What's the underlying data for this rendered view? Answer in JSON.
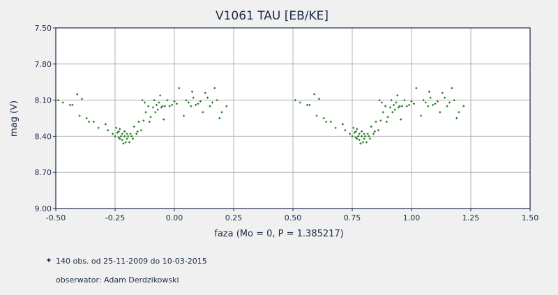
{
  "chart_data": {
    "type": "scatter",
    "title": "V1061 TAU [EB/KE]",
    "xlabel": "faza (Mo = 0, P = 1.385217)",
    "ylabel": "mag (V)",
    "xlim": [
      -0.5,
      1.5
    ],
    "ylim": [
      7.5,
      9.0
    ],
    "y_inverted": true,
    "grid": true,
    "x_ticks": [
      "-0.50",
      "-0.25",
      "0.00",
      "0.25",
      "0.50",
      "0.75",
      "1.00",
      "1.25",
      "1.50"
    ],
    "y_ticks": [
      "7.50",
      "7.80",
      "8.10",
      "8.40",
      "8.70",
      "9.00"
    ],
    "legend": {
      "marker_color": "#1a7a1a",
      "observations": "140 obs. od 25-11-2009 do 10-03-2015",
      "observer": "obserwator: Adam Derdzikowski"
    },
    "colors": {
      "points": "#1a7a1a",
      "grid": "#b0b0b0",
      "plot_bg": "#ffffff",
      "axis": "#1a2a4a"
    },
    "series": [
      {
        "x": [
          -0.49,
          -0.47,
          -0.44,
          -0.43,
          -0.41,
          -0.4,
          -0.39,
          -0.37,
          -0.36,
          -0.34,
          -0.32,
          -0.29,
          -0.28,
          -0.26,
          -0.25,
          -0.245,
          -0.24,
          -0.235,
          -0.235,
          -0.23,
          -0.23,
          -0.225,
          -0.22,
          -0.22,
          -0.215,
          -0.21,
          -0.21,
          -0.205,
          -0.2,
          -0.2,
          -0.195,
          -0.19,
          -0.185,
          -0.18,
          -0.175,
          -0.17,
          -0.16,
          -0.155,
          -0.15,
          -0.14,
          -0.135,
          -0.13,
          -0.125,
          -0.12,
          -0.11,
          -0.105,
          -0.1,
          -0.09,
          -0.085,
          -0.08,
          -0.075,
          -0.07,
          -0.065,
          -0.06,
          -0.055,
          -0.05,
          -0.045,
          -0.04,
          -0.03,
          -0.02,
          -0.01,
          0.0,
          0.01,
          0.02,
          0.04,
          0.05,
          0.06,
          0.07,
          0.075,
          0.08,
          0.09,
          0.1,
          0.11,
          0.12,
          0.13,
          0.14,
          0.15,
          0.16,
          0.17,
          0.18,
          0.19,
          0.2,
          0.22
        ],
        "y": [
          8.1,
          8.12,
          8.14,
          8.14,
          8.05,
          8.23,
          8.09,
          8.25,
          8.28,
          8.28,
          8.33,
          8.3,
          8.35,
          8.38,
          8.4,
          8.33,
          8.37,
          8.41,
          8.36,
          8.42,
          8.34,
          8.4,
          8.43,
          8.38,
          8.46,
          8.4,
          8.36,
          8.45,
          8.42,
          8.38,
          8.4,
          8.45,
          8.38,
          8.4,
          8.42,
          8.32,
          8.38,
          8.36,
          8.28,
          8.35,
          8.1,
          8.27,
          8.12,
          8.2,
          8.15,
          8.28,
          8.24,
          8.16,
          8.1,
          8.2,
          8.14,
          8.18,
          8.12,
          8.06,
          8.16,
          8.15,
          8.26,
          8.15,
          8.1,
          8.15,
          8.14,
          8.11,
          8.13,
          8.0,
          8.23,
          8.1,
          8.12,
          8.15,
          8.03,
          8.08,
          8.14,
          8.13,
          8.11,
          8.2,
          8.04,
          8.08,
          8.15,
          8.12,
          8.0,
          8.1,
          8.25,
          8.2,
          8.15
        ]
      }
    ]
  }
}
